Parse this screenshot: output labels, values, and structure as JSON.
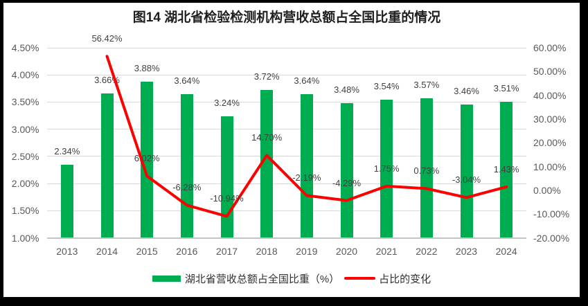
{
  "page": {
    "background_color": "#000000",
    "panel_color": "#ffffff"
  },
  "chart_data": {
    "type": "combo-bar-line",
    "title": "图14 湖北省检验检测机构营收总额占全国比重的情况",
    "categories": [
      "2013",
      "2014",
      "2015",
      "2016",
      "2017",
      "2018",
      "2019",
      "2020",
      "2021",
      "2022",
      "2023",
      "2024"
    ],
    "series": [
      {
        "name": "湖北省营收总额占全国比重（%）",
        "type": "bar",
        "axis": "left",
        "color": "#00AC50",
        "values": [
          2.34,
          3.66,
          3.88,
          3.64,
          3.24,
          3.72,
          3.64,
          3.48,
          3.54,
          3.57,
          3.46,
          3.51
        ],
        "labels": [
          "2.34%",
          "3.66%",
          "3.88%",
          "3.64%",
          "3.24%",
          "3.72%",
          "3.64%",
          "3.48%",
          "3.54%",
          "3.57%",
          "3.46%",
          "3.51%"
        ]
      },
      {
        "name": "占比的变化",
        "type": "line",
        "axis": "right",
        "color": "#FF0000",
        "values": [
          null,
          56.42,
          6.02,
          -6.28,
          -10.94,
          14.7,
          -2.19,
          -4.29,
          1.75,
          0.73,
          -3.04,
          1.43
        ],
        "labels": [
          null,
          "56.42%",
          "6.02%",
          "-6.28%",
          "-10.94%",
          "14.70%",
          "-2.19%",
          "-4.29%",
          "1.75%",
          "0.73%",
          "-3.04%",
          "1.43%"
        ]
      }
    ],
    "left_axis": {
      "min": 1.0,
      "max": 4.5,
      "step": 0.5,
      "tick_labels": [
        "4.50%",
        "4.00%",
        "3.50%",
        "3.00%",
        "2.50%",
        "2.00%",
        "1.50%",
        "1.00%"
      ]
    },
    "right_axis": {
      "min": -20,
      "max": 60,
      "step": 10,
      "tick_labels": [
        "60.00%",
        "50.00%",
        "40.00%",
        "30.00%",
        "20.00%",
        "10.00%",
        "0.00%",
        "-10.00%",
        "-20.00%"
      ]
    },
    "grid": true,
    "legend_position": "bottom",
    "legend": [
      {
        "label": "湖北省营收总额占全国比重（%）",
        "swatch": "bar",
        "color": "#00AC50"
      },
      {
        "label": "占比的变化",
        "swatch": "line",
        "color": "#FF0000"
      }
    ]
  }
}
